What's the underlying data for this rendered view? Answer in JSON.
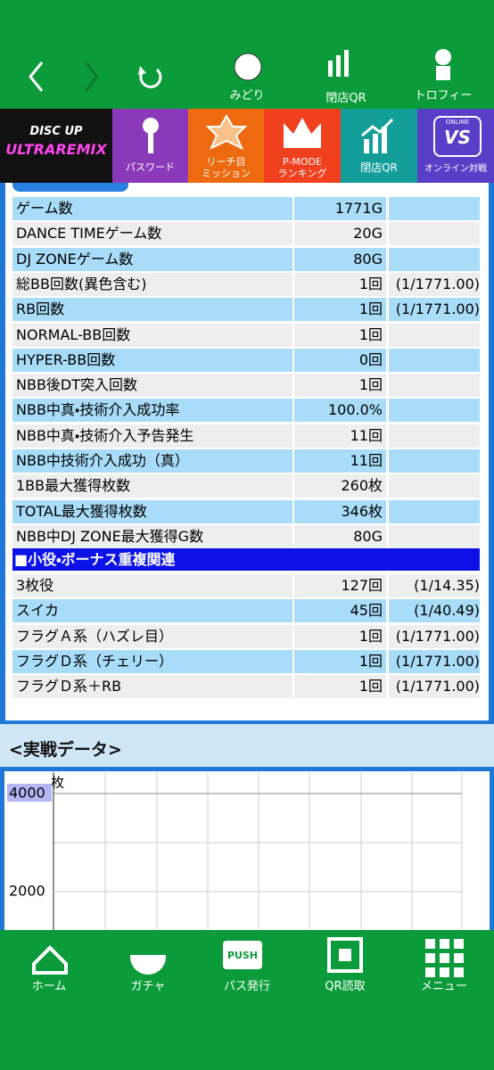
{
  "top_nav": {
    "items": [
      "みどり",
      "閉店QR",
      "トロフィー"
    ]
  },
  "menu_tabs": {
    "logo": [
      "DISC UP",
      "ULTRAREMIX"
    ],
    "items": [
      [
        "パスワード"
      ],
      [
        "リーチ目",
        "ミッション"
      ],
      [
        "P-MODE",
        "ランキング"
      ],
      [
        "閉店QR"
      ],
      [
        "オンライン対戦"
      ]
    ],
    "online_badge": [
      "ONLINE",
      "VS"
    ]
  },
  "stats_table": {
    "rows": [
      [
        "ゲーム数",
        "1771G"
      ],
      [
        "DANCE TIMEゲーム数",
        "20G"
      ],
      [
        "DJ ZONEゲーム数",
        "80G"
      ],
      [
        "総BB回数(異色含む)",
        "1回",
        "(1/1771.00)"
      ],
      [
        "RB回数",
        "1回",
        "(1/1771.00)"
      ],
      [
        "NORMAL-BB回数",
        "1回"
      ],
      [
        "HYPER-BB回数",
        "0回"
      ],
      [
        "NBB後DT突入回数",
        "1回"
      ],
      [
        "NBB中真・技術介入成功率",
        "100.0%"
      ],
      [
        "NBB中真・技術介入予告発生",
        "11回"
      ],
      [
        "NBB中技術介入成功（真）",
        "11回"
      ],
      [
        "1BB最大獲得枚数",
        "260枚"
      ],
      [
        "TOTAL最大獲得枚数",
        "346枚"
      ],
      [
        "NBB中DJ ZONE最大獲得G数",
        "80G"
      ]
    ],
    "section_header": "■小役・ボーナス重複関連",
    "section_rows": [
      [
        "3枚役",
        "127回",
        "(1/14.35)"
      ],
      [
        "スイカ",
        "45回",
        "(1/40.49)"
      ],
      [
        "フラグＡ系（ハズレ目）",
        "1回",
        "(1/1771.00)"
      ],
      [
        "フラグＤ系（チェリー）",
        "1回",
        "(1/1771.00)"
      ],
      [
        "フラグＤ系＋RB",
        "1回",
        "(1/1771.00)"
      ]
    ]
  },
  "chart_section": {
    "title": "<実戦データ>",
    "unit": "枚",
    "yticks": [
      4000,
      2000
    ]
  },
  "bottom_nav": {
    "items": [
      "ホーム",
      "ガチャ",
      "パス発行",
      "QR読取",
      "メニュー"
    ],
    "push_icon": "PUSH"
  }
}
